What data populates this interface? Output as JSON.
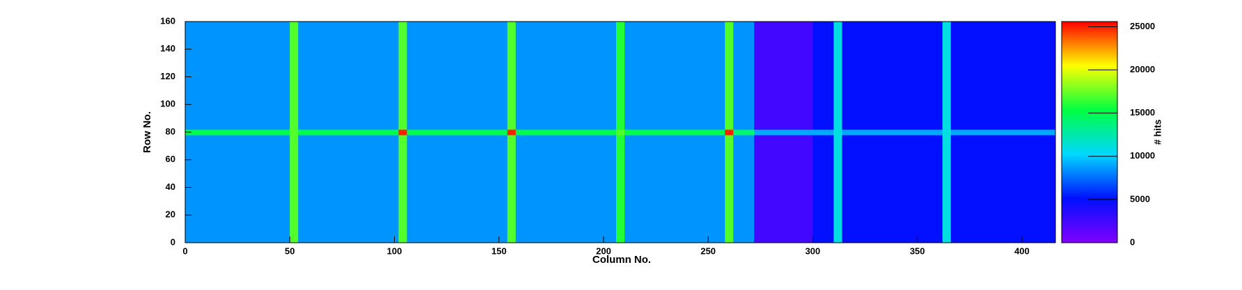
{
  "chart_data": {
    "type": "heatmap",
    "x_label": "Column No.",
    "y_label": "Row No.",
    "z_label": "# hits",
    "xbins": [
      0,
      50,
      54,
      102,
      106,
      154,
      158,
      206,
      210,
      258,
      262,
      272,
      300,
      310,
      314,
      362,
      366,
      416
    ],
    "ybins": [
      0,
      78,
      82,
      160
    ],
    "z": [
      [
        8500,
        17000,
        8500,
        17000,
        8500,
        17000,
        8500,
        16000,
        8500,
        17000,
        8500,
        2500,
        5000,
        11000,
        5000,
        11000,
        5000
      ],
      [
        15000,
        17000,
        15000,
        25000,
        15000,
        25000,
        15000,
        17000,
        15000,
        25000,
        14000,
        9000,
        9000,
        11000,
        9000,
        11000,
        9000
      ],
      [
        8500,
        17000,
        8500,
        17000,
        8500,
        17000,
        8500,
        16000,
        8500,
        17000,
        8500,
        2500,
        5000,
        11000,
        5000,
        11000,
        5000
      ]
    ],
    "xlim": [
      0,
      416
    ],
    "xticks": [
      0,
      50,
      100,
      150,
      200,
      250,
      300,
      350,
      400
    ],
    "ylim": [
      0,
      160
    ],
    "yticks": [
      0,
      20,
      40,
      60,
      80,
      100,
      120,
      140,
      160
    ],
    "zlim": [
      0,
      25600
    ],
    "zticks": [
      0,
      5000,
      10000,
      15000,
      20000,
      25000
    ],
    "colormap": [
      "#8000ff",
      "#0010ff",
      "#00d8ff",
      "#00ff40",
      "#ffff00",
      "#ff0000"
    ]
  }
}
